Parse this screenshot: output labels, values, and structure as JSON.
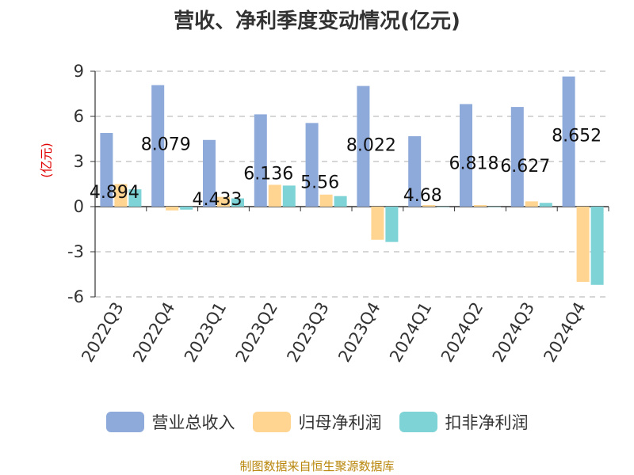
{
  "chart_data": {
    "type": "bar",
    "title": "营收、净利季度变动情况(亿元)",
    "ylabel": "(亿元)",
    "ylim": [
      -6,
      9
    ],
    "yticks": [
      9,
      6,
      3,
      0,
      -3,
      -6
    ],
    "grid": true,
    "legend_position": "bottom",
    "categories": [
      "2022Q3",
      "2022Q4",
      "2023Q1",
      "2023Q2",
      "2023Q3",
      "2023Q4",
      "2024Q1",
      "2024Q2",
      "2024Q3",
      "2024Q4"
    ],
    "series": [
      {
        "name": "营业总收入",
        "color": "#8EAADB",
        "values": [
          4.894,
          8.079,
          4.433,
          6.136,
          5.56,
          8.022,
          4.68,
          6.818,
          6.627,
          8.652
        ],
        "data_labels": [
          "4.894",
          "8.079",
          "4.433",
          "6.136",
          "5.56",
          "8.022",
          "4.68",
          "6.818",
          "6.627",
          "8.652"
        ]
      },
      {
        "name": "归母净利润",
        "color": "#FFD591",
        "values": [
          1.5,
          -0.25,
          0.65,
          1.45,
          0.8,
          -2.2,
          0.1,
          0.1,
          0.35,
          -5.0
        ]
      },
      {
        "name": "扣非净利润",
        "color": "#7ED3D6",
        "values": [
          1.15,
          -0.2,
          0.55,
          1.4,
          0.7,
          -2.35,
          0.0,
          0.0,
          0.25,
          -5.2
        ]
      }
    ]
  },
  "source_note": "制图数据来自恒生聚源数据库"
}
